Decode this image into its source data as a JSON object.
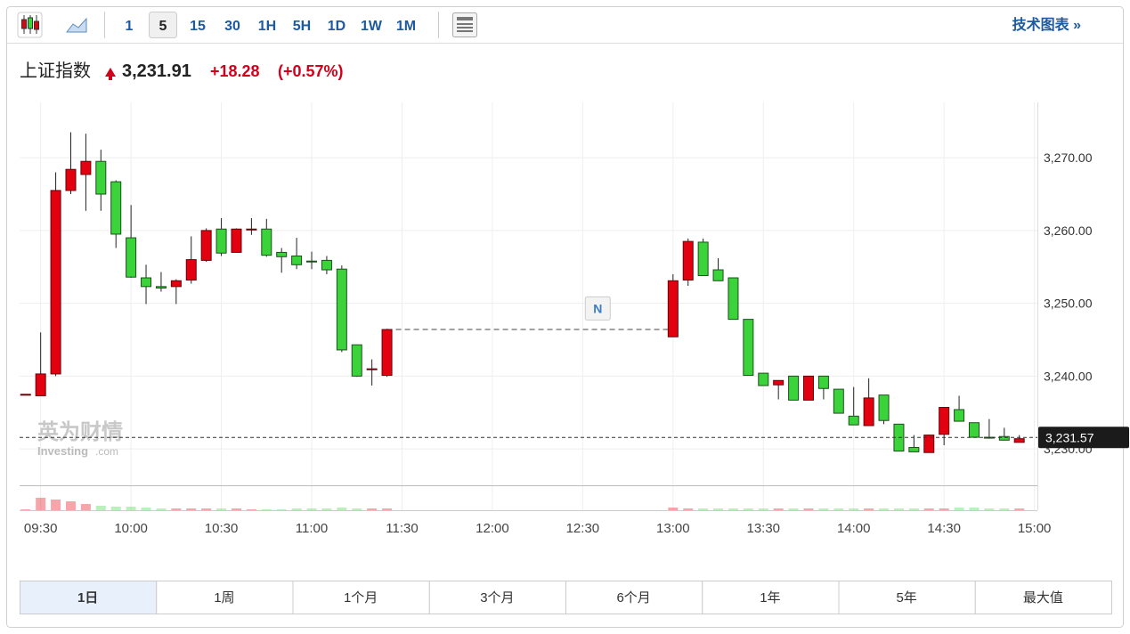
{
  "toolbar": {
    "intervals": [
      "1",
      "5",
      "15",
      "30",
      "1H",
      "5H",
      "1D",
      "1W",
      "1M"
    ],
    "selected": 1,
    "link": "技术图表 »"
  },
  "header": {
    "name": "上证指数",
    "price": "3,231.91",
    "change": "+18.28",
    "change_pct": "(+0.57%)"
  },
  "watermark": {
    "name": "英为财情",
    "brand": "Investing",
    "suffix": ".com"
  },
  "chart_data": {
    "type": "candlestick",
    "up_color": "#e3000f",
    "down_color": "#3ad33a",
    "x": [
      "09:25",
      "09:30",
      "09:35",
      "09:40",
      "09:45",
      "09:50",
      "09:55",
      "10:00",
      "10:05",
      "10:10",
      "10:15",
      "10:20",
      "10:25",
      "10:30",
      "10:35",
      "10:40",
      "10:45",
      "10:50",
      "10:55",
      "11:00",
      "11:05",
      "11:10",
      "11:15",
      "11:20",
      "11:25",
      "13:00",
      "13:05",
      "13:10",
      "13:15",
      "13:20",
      "13:25",
      "13:30",
      "13:35",
      "13:40",
      "13:45",
      "13:50",
      "13:55",
      "14:00",
      "14:05",
      "14:10",
      "14:15",
      "14:20",
      "14:25",
      "14:30",
      "14:35",
      "14:40",
      "14:45",
      "14:50",
      "14:55"
    ],
    "open": [
      3237.5,
      3237.3,
      3240.3,
      3265.5,
      3267.7,
      3269.5,
      3266.7,
      3259.0,
      3253.5,
      3252.3,
      3252.3,
      3253.2,
      3255.9,
      3260.2,
      3257.0,
      3260.1,
      3260.2,
      3257.0,
      3256.5,
      3255.8,
      3255.9,
      3254.7,
      3244.3,
      3241.0,
      3240.1,
      3245.4,
      3253.2,
      3258.4,
      3254.6,
      3253.5,
      3247.8,
      3240.4,
      3238.8,
      3240.0,
      3236.7,
      3240.0,
      3238.2,
      3234.5,
      3233.2,
      3237.4,
      3233.4,
      3230.2,
      3229.5,
      3232.0,
      3235.4,
      3233.6,
      3231.6,
      3231.7,
      3230.9
    ],
    "high": [
      3237.5,
      3246.0,
      3268.0,
      3273.5,
      3273.3,
      3271.1,
      3266.9,
      3263.5,
      3255.3,
      3254.3,
      3253.3,
      3259.2,
      3260.3,
      3261.7,
      3260.3,
      3261.7,
      3261.6,
      3257.6,
      3259.0,
      3257.1,
      3256.5,
      3255.2,
      3244.3,
      3242.3,
      3246.5,
      3254.0,
      3258.9,
      3258.9,
      3256.2,
      3253.5,
      3247.8,
      3240.4,
      3239.4,
      3240.0,
      3240.0,
      3240.0,
      3238.2,
      3238.5,
      3239.7,
      3237.4,
      3233.4,
      3231.9,
      3231.9,
      3235.7,
      3237.3,
      3233.6,
      3234.1,
      3232.9,
      3231.9
    ],
    "low": [
      3237.5,
      3237.3,
      3240.0,
      3265.0,
      3262.7,
      3262.7,
      3257.6,
      3253.5,
      3249.9,
      3251.6,
      3249.9,
      3252.7,
      3255.7,
      3256.5,
      3257.0,
      3259.4,
      3256.4,
      3254.2,
      3254.7,
      3254.7,
      3254.0,
      3243.3,
      3239.9,
      3238.7,
      3239.9,
      3245.4,
      3252.4,
      3253.8,
      3253.1,
      3247.8,
      3240.1,
      3238.7,
      3236.8,
      3236.7,
      3236.7,
      3236.8,
      3234.9,
      3233.3,
      3233.2,
      3233.4,
      3229.7,
      3229.6,
      3229.5,
      3230.5,
      3233.8,
      3231.6,
      3231.4,
      3231.2,
      3230.9
    ],
    "close": [
      3237.5,
      3240.3,
      3265.5,
      3268.4,
      3269.5,
      3265.0,
      3259.5,
      3253.6,
      3252.3,
      3252.1,
      3253.1,
      3256.0,
      3260.0,
      3256.9,
      3260.2,
      3260.2,
      3256.6,
      3256.4,
      3255.3,
      3255.7,
      3254.6,
      3243.6,
      3240.0,
      3241.0,
      3246.4,
      3253.1,
      3258.5,
      3253.8,
      3253.1,
      3247.8,
      3240.1,
      3238.7,
      3239.4,
      3236.7,
      3240.0,
      3238.3,
      3234.9,
      3233.3,
      3237.0,
      3233.9,
      3229.7,
      3229.6,
      3231.9,
      3235.7,
      3233.8,
      3231.6,
      3231.5,
      3231.2,
      3231.4
    ],
    "volume": [
      1,
      14,
      12,
      10,
      7,
      5,
      4,
      4,
      3,
      2,
      2,
      2,
      2,
      2,
      2,
      1,
      1,
      1,
      2,
      2,
      2,
      3,
      2,
      2,
      2,
      3,
      2,
      2,
      2,
      2,
      2,
      2,
      2,
      2,
      2,
      2,
      2,
      2,
      2,
      2,
      2,
      2,
      2,
      2,
      3,
      3,
      2,
      2,
      2
    ],
    "volume_ylim": [
      0,
      28
    ],
    "xlim": [
      "09:23",
      "15:01"
    ],
    "xticks": [
      "09:30",
      "10:00",
      "10:30",
      "11:00",
      "11:30",
      "12:00",
      "12:30",
      "13:00",
      "13:30",
      "14:00",
      "14:30",
      "15:00"
    ],
    "ylim": [
      3225,
      3277.6
    ],
    "yticks": [
      {
        "value": 3230,
        "label": "3,230.00"
      },
      {
        "value": 3240,
        "label": "3,240.00"
      },
      {
        "value": 3250,
        "label": "3,250.00"
      },
      {
        "value": 3260,
        "label": "3,260.00"
      },
      {
        "value": 3270,
        "label": "3,270.00"
      }
    ],
    "grid": true,
    "last_price": {
      "value": 3231.57,
      "label": "3,231.57"
    },
    "annotations": [
      {
        "text": "N",
        "x": "12:35",
        "y": 3249.3
      }
    ]
  },
  "range_tabs": {
    "items": [
      "1日",
      "1周",
      "1个月",
      "3个月",
      "6个月",
      "1年",
      "5年",
      "最大值"
    ],
    "selected": 0
  }
}
